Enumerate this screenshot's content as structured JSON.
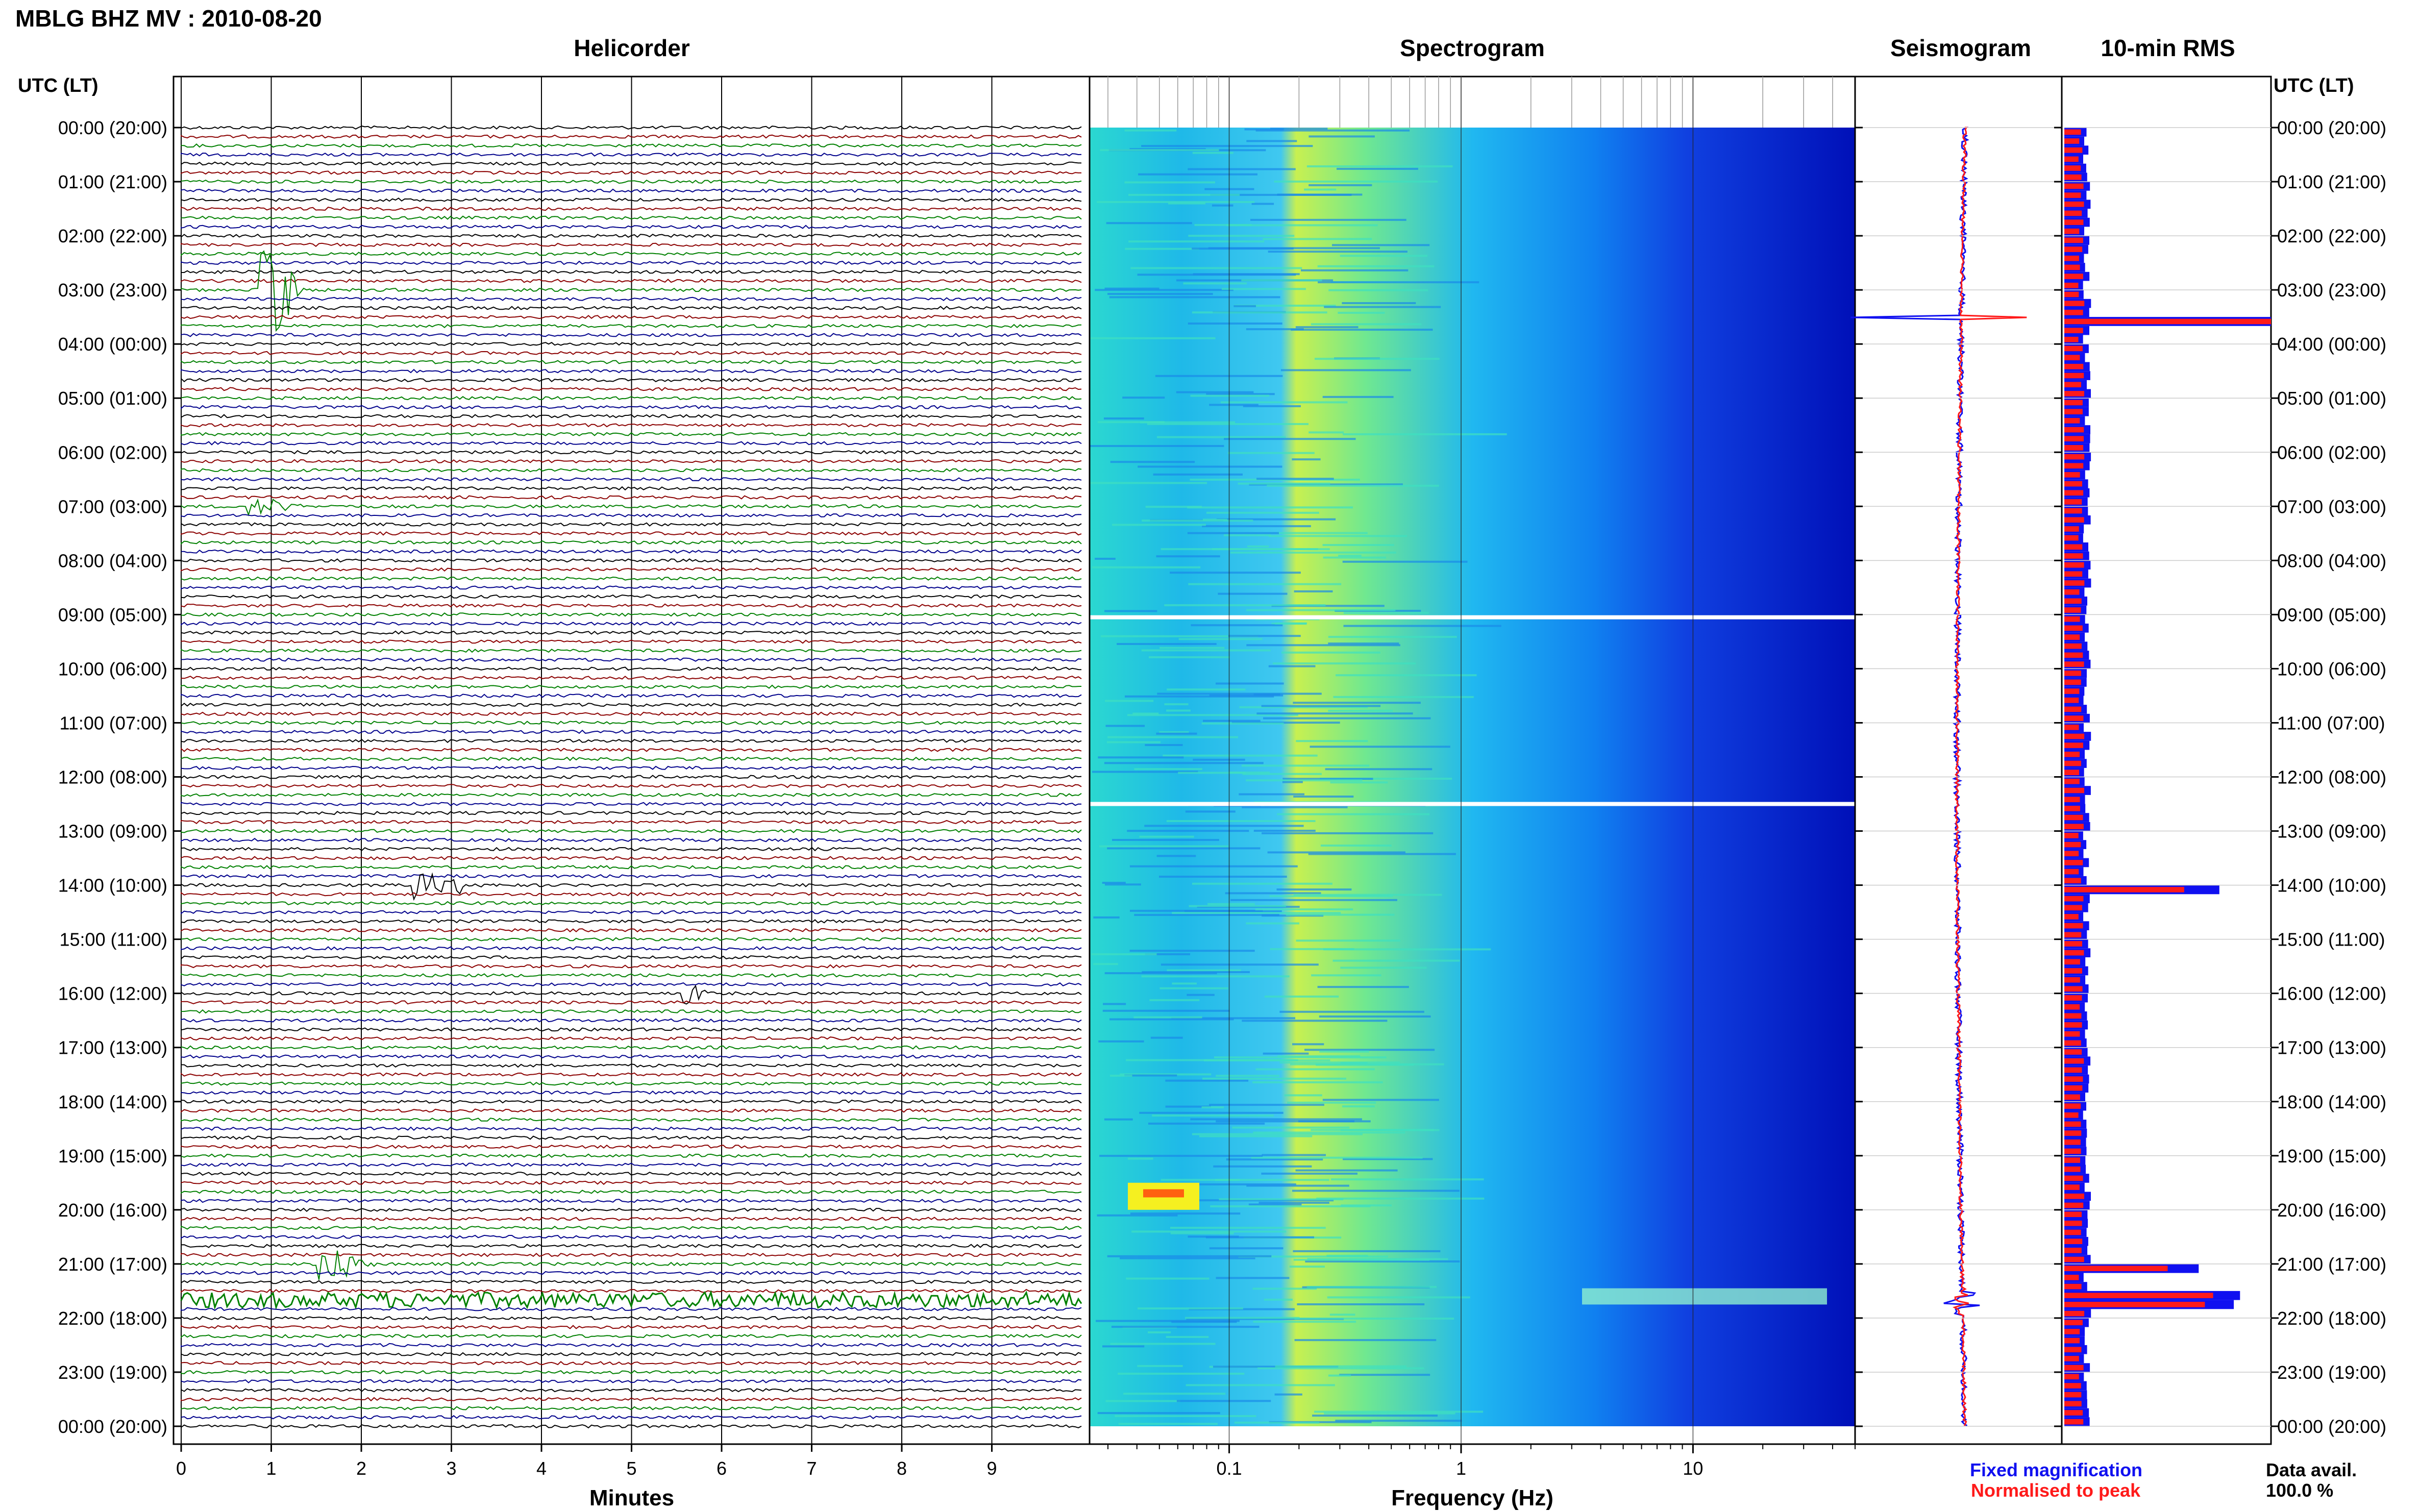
{
  "header": {
    "station_title": "MBLG BHZ MV : 2010-08-20",
    "time_axis_label": "UTC (LT)"
  },
  "panels": {
    "helicorder_title": "Helicorder",
    "spectrogram_title": "Spectrogram",
    "seismogram_title": "Seismogram",
    "rms_title": "10-min RMS"
  },
  "footer": {
    "helicorder_xlabel": "Minutes",
    "spectrogram_xlabel": "Frequency (Hz)",
    "legend_fixed": "Fixed magnification",
    "legend_normalised": "Normalised to peak",
    "data_avail_label": "Data avail.",
    "data_avail_value": "100.0 %"
  },
  "colors": {
    "fixed": "#1010f0",
    "normalised": "#ff1a1a",
    "trace_cycle": [
      "#000000",
      "#8b0000",
      "#008000",
      "#00008b"
    ]
  },
  "chart_data": [
    {
      "type": "line",
      "name": "helicorder",
      "title": "Helicorder",
      "xlabel": "Minutes",
      "xlim": [
        0,
        10
      ],
      "x_ticks": [
        0,
        1,
        2,
        3,
        4,
        5,
        6,
        7,
        8,
        9
      ],
      "rows_per_hour": 6,
      "row_minutes": 10,
      "y_tick_labels": [
        "00:00 (20:00)",
        "01:00 (21:00)",
        "02:00 (22:00)",
        "03:00 (23:00)",
        "04:00 (00:00)",
        "05:00 (01:00)",
        "06:00 (02:00)",
        "07:00 (03:00)",
        "08:00 (04:00)",
        "09:00 (05:00)",
        "10:00 (06:00)",
        "11:00 (07:00)",
        "12:00 (08:00)",
        "13:00 (09:00)",
        "14:00 (10:00)",
        "15:00 (11:00)",
        "16:00 (12:00)",
        "17:00 (13:00)",
        "18:00 (14:00)",
        "19:00 (15:00)",
        "20:00 (16:00)",
        "21:00 (17:00)",
        "22:00 (18:00)",
        "23:00 (19:00)",
        "00:00 (20:00)"
      ],
      "events": [
        {
          "hour": 3.0,
          "minute": 0.85,
          "amp": 3.5,
          "len": 0.6
        },
        {
          "hour": 7.0,
          "minute": 0.7,
          "amp": 0.6,
          "len": 0.8
        },
        {
          "hour": 8.85,
          "minute": 1.75,
          "amp": 0.6,
          "len": 0.5
        },
        {
          "hour": 14.0,
          "minute": 2.55,
          "amp": 1.8,
          "len": 0.8
        },
        {
          "hour": 16.0,
          "minute": 5.55,
          "amp": 1.2,
          "len": 0.3
        },
        {
          "hour": 19.6,
          "minute": 0.6,
          "amp": 0.5,
          "len": 1.5
        },
        {
          "hour": 21.0,
          "minute": 1.5,
          "amp": 1.4,
          "len": 0.7
        }
      ],
      "noise_burst_hour": 21.7
    },
    {
      "type": "heatmap",
      "name": "spectrogram",
      "title": "Spectrogram",
      "xlabel": "Frequency (Hz)",
      "xscale": "log",
      "xlim": [
        0.025,
        50
      ],
      "x_ticks": [
        0.1,
        1,
        10
      ],
      "x_tick_labels": [
        "0.1",
        "1",
        "10"
      ]
    },
    {
      "type": "line",
      "name": "seismogram",
      "title": "Seismogram",
      "series": [
        {
          "name": "Fixed magnification",
          "color": "#1010f0"
        },
        {
          "name": "Normalised to peak",
          "color": "#ff1a1a"
        }
      ]
    },
    {
      "type": "bar",
      "name": "rms",
      "title": "10-min RMS",
      "orientation": "horizontal",
      "bins": 144,
      "spikes": [
        {
          "hour": 3.5,
          "fixed": 1.0,
          "norm": 1.0
        },
        {
          "hour": 14.0,
          "fixed": 0.75,
          "norm": 0.58
        },
        {
          "hour": 21.0,
          "fixed": 0.65,
          "norm": 0.5
        },
        {
          "hour": 21.5,
          "fixed": 0.85,
          "norm": 0.72
        },
        {
          "hour": 21.67,
          "fixed": 0.82,
          "norm": 0.68
        }
      ]
    }
  ]
}
